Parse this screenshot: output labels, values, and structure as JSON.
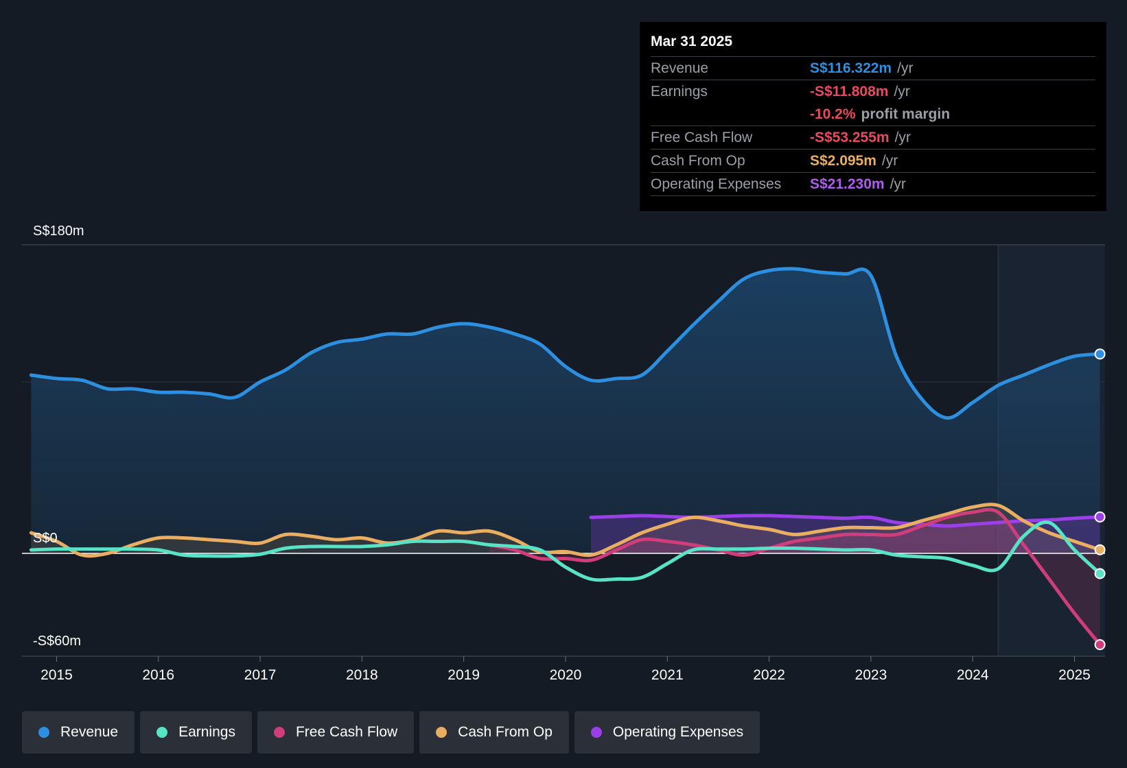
{
  "chart_data": {
    "type": "line",
    "title": "",
    "x_range": [
      2014.66,
      2025.3
    ],
    "ylim": [
      -60,
      180
    ],
    "y_labels": [
      "S$180m",
      "S$0",
      "-S$60m"
    ],
    "x_ticks": [
      2015,
      2016,
      2017,
      2018,
      2019,
      2020,
      2021,
      2022,
      2023,
      2024,
      2025
    ],
    "x_tick_labels": [
      "2015",
      "2016",
      "2017",
      "2018",
      "2019",
      "2020",
      "2021",
      "2022",
      "2023",
      "2024",
      "2025"
    ],
    "forecast_start": 2024.25,
    "series": [
      {
        "name": "Revenue",
        "color": "#2d8fe0",
        "fill": true,
        "points": [
          [
            2014.75,
            104
          ],
          [
            2015.0,
            102
          ],
          [
            2015.25,
            101
          ],
          [
            2015.5,
            96
          ],
          [
            2015.75,
            96
          ],
          [
            2016.0,
            94
          ],
          [
            2016.25,
            94
          ],
          [
            2016.5,
            93
          ],
          [
            2016.75,
            91
          ],
          [
            2017.0,
            100
          ],
          [
            2017.25,
            107
          ],
          [
            2017.5,
            117
          ],
          [
            2017.75,
            123
          ],
          [
            2018.0,
            125
          ],
          [
            2018.25,
            128
          ],
          [
            2018.5,
            128
          ],
          [
            2018.75,
            132
          ],
          [
            2019.0,
            134
          ],
          [
            2019.25,
            132
          ],
          [
            2019.5,
            128
          ],
          [
            2019.75,
            122
          ],
          [
            2020.0,
            109
          ],
          [
            2020.25,
            101
          ],
          [
            2020.5,
            102
          ],
          [
            2020.75,
            104
          ],
          [
            2021.0,
            118
          ],
          [
            2021.25,
            133
          ],
          [
            2021.5,
            147
          ],
          [
            2021.75,
            160
          ],
          [
            2022.0,
            165
          ],
          [
            2022.25,
            166
          ],
          [
            2022.5,
            164
          ],
          [
            2022.75,
            163
          ],
          [
            2023.0,
            162
          ],
          [
            2023.25,
            115
          ],
          [
            2023.5,
            90
          ],
          [
            2023.75,
            79
          ],
          [
            2024.0,
            88
          ],
          [
            2024.25,
            98
          ],
          [
            2024.5,
            104
          ],
          [
            2024.75,
            110
          ],
          [
            2025.0,
            115
          ],
          [
            2025.25,
            116.322
          ]
        ]
      },
      {
        "name": "Earnings",
        "color": "#58e2c6",
        "fill": false,
        "points": [
          [
            2014.75,
            2
          ],
          [
            2015.0,
            2.5
          ],
          [
            2015.25,
            2.5
          ],
          [
            2015.5,
            2.5
          ],
          [
            2015.75,
            2.5
          ],
          [
            2016.0,
            2
          ],
          [
            2016.25,
            -1
          ],
          [
            2016.5,
            -1.5
          ],
          [
            2016.75,
            -1.5
          ],
          [
            2017.0,
            -0.5
          ],
          [
            2017.25,
            3
          ],
          [
            2017.5,
            4
          ],
          [
            2017.75,
            4
          ],
          [
            2018.0,
            4
          ],
          [
            2018.25,
            5
          ],
          [
            2018.5,
            7
          ],
          [
            2018.75,
            7
          ],
          [
            2019.0,
            7
          ],
          [
            2019.25,
            5
          ],
          [
            2019.5,
            4
          ],
          [
            2019.75,
            2
          ],
          [
            2020.0,
            -8
          ],
          [
            2020.25,
            -15
          ],
          [
            2020.5,
            -15
          ],
          [
            2020.75,
            -14
          ],
          [
            2021.0,
            -6
          ],
          [
            2021.25,
            2
          ],
          [
            2021.5,
            2.5
          ],
          [
            2021.75,
            2.5
          ],
          [
            2022.0,
            3
          ],
          [
            2022.25,
            3
          ],
          [
            2022.5,
            2.5
          ],
          [
            2022.75,
            2
          ],
          [
            2023.0,
            2
          ],
          [
            2023.25,
            -1
          ],
          [
            2023.5,
            -2
          ],
          [
            2023.75,
            -3
          ],
          [
            2024.0,
            -7
          ],
          [
            2024.25,
            -9
          ],
          [
            2024.5,
            10
          ],
          [
            2024.75,
            18
          ],
          [
            2025.0,
            2
          ],
          [
            2025.25,
            -11.808
          ]
        ]
      },
      {
        "name": "Free Cash Flow",
        "color": "#cf3d7a",
        "fill": true,
        "points": [
          [
            2019.25,
            5
          ],
          [
            2019.5,
            2
          ],
          [
            2019.75,
            -3
          ],
          [
            2020.0,
            -3
          ],
          [
            2020.25,
            -4
          ],
          [
            2020.5,
            2
          ],
          [
            2020.75,
            8
          ],
          [
            2021.0,
            7
          ],
          [
            2021.25,
            5
          ],
          [
            2021.5,
            2
          ],
          [
            2021.75,
            -1
          ],
          [
            2022.0,
            3
          ],
          [
            2022.25,
            7
          ],
          [
            2022.5,
            9
          ],
          [
            2022.75,
            11
          ],
          [
            2023.0,
            11
          ],
          [
            2023.25,
            11
          ],
          [
            2023.5,
            16
          ],
          [
            2023.75,
            21
          ],
          [
            2024.0,
            24
          ],
          [
            2024.25,
            24
          ],
          [
            2024.5,
            5
          ],
          [
            2024.75,
            -15
          ],
          [
            2025.0,
            -35
          ],
          [
            2025.25,
            -53.255
          ]
        ]
      },
      {
        "name": "Cash From Op",
        "color": "#e9ae62",
        "fill": true,
        "points": [
          [
            2014.75,
            12
          ],
          [
            2015.0,
            7
          ],
          [
            2015.25,
            -1
          ],
          [
            2015.5,
            0
          ],
          [
            2015.75,
            5
          ],
          [
            2016.0,
            9
          ],
          [
            2016.25,
            9
          ],
          [
            2016.5,
            8
          ],
          [
            2016.75,
            7
          ],
          [
            2017.0,
            6
          ],
          [
            2017.25,
            11
          ],
          [
            2017.5,
            10
          ],
          [
            2017.75,
            8
          ],
          [
            2018.0,
            9
          ],
          [
            2018.25,
            6
          ],
          [
            2018.5,
            8
          ],
          [
            2018.75,
            13
          ],
          [
            2019.0,
            12
          ],
          [
            2019.25,
            13
          ],
          [
            2019.5,
            8
          ],
          [
            2019.75,
            1
          ],
          [
            2020.0,
            1
          ],
          [
            2020.25,
            -1
          ],
          [
            2020.5,
            5
          ],
          [
            2020.75,
            12
          ],
          [
            2021.0,
            17
          ],
          [
            2021.25,
            21
          ],
          [
            2021.5,
            19
          ],
          [
            2021.75,
            16
          ],
          [
            2022.0,
            14
          ],
          [
            2022.25,
            11
          ],
          [
            2022.5,
            13
          ],
          [
            2022.75,
            15
          ],
          [
            2023.0,
            15
          ],
          [
            2023.25,
            15
          ],
          [
            2023.5,
            19
          ],
          [
            2023.75,
            23
          ],
          [
            2024.0,
            27
          ],
          [
            2024.25,
            28
          ],
          [
            2024.5,
            19
          ],
          [
            2024.75,
            12
          ],
          [
            2025.0,
            7
          ],
          [
            2025.25,
            2.095
          ]
        ]
      },
      {
        "name": "Operating Expenses",
        "color": "#9b40e8",
        "fill": true,
        "points": [
          [
            2020.25,
            21
          ],
          [
            2020.5,
            21.5
          ],
          [
            2020.75,
            22
          ],
          [
            2021.0,
            21.5
          ],
          [
            2021.25,
            21
          ],
          [
            2021.5,
            21.5
          ],
          [
            2021.75,
            22
          ],
          [
            2022.0,
            22
          ],
          [
            2022.25,
            21.5
          ],
          [
            2022.5,
            21
          ],
          [
            2022.75,
            20.5
          ],
          [
            2023.0,
            21
          ],
          [
            2023.25,
            18
          ],
          [
            2023.5,
            17
          ],
          [
            2023.75,
            16
          ],
          [
            2024.0,
            17
          ],
          [
            2024.25,
            18
          ],
          [
            2024.5,
            19
          ],
          [
            2024.75,
            19.5
          ],
          [
            2025.0,
            20.5
          ],
          [
            2025.25,
            21.23
          ]
        ]
      }
    ]
  },
  "tooltip": {
    "date": "Mar 31 2025",
    "rows": {
      "revenue": {
        "label": "Revenue",
        "value": "S$116.322m",
        "unit": "/yr",
        "color": "#2d8fe0"
      },
      "earnings": {
        "label": "Earnings",
        "value": "-S$11.808m",
        "unit": "/yr",
        "color": "#e84a5f"
      },
      "margin": {
        "value": "-10.2%",
        "unit": "profit margin",
        "color": "#e84a5f"
      },
      "fcf": {
        "label": "Free Cash Flow",
        "value": "-S$53.255m",
        "unit": "/yr",
        "color": "#e84a5f"
      },
      "cfo": {
        "label": "Cash From Op",
        "value": "S$2.095m",
        "unit": "/yr",
        "color": "#e9ae62"
      },
      "opex": {
        "label": "Operating Expenses",
        "value": "S$21.230m",
        "unit": "/yr",
        "color": "#9b40e8"
      }
    }
  },
  "legend": [
    {
      "label": "Revenue",
      "color": "#2d8fe0"
    },
    {
      "label": "Earnings",
      "color": "#58e2c6"
    },
    {
      "label": "Free Cash Flow",
      "color": "#cf3d7a"
    },
    {
      "label": "Cash From Op",
      "color": "#e9ae62"
    },
    {
      "label": "Operating Expenses",
      "color": "#9b40e8"
    }
  ]
}
